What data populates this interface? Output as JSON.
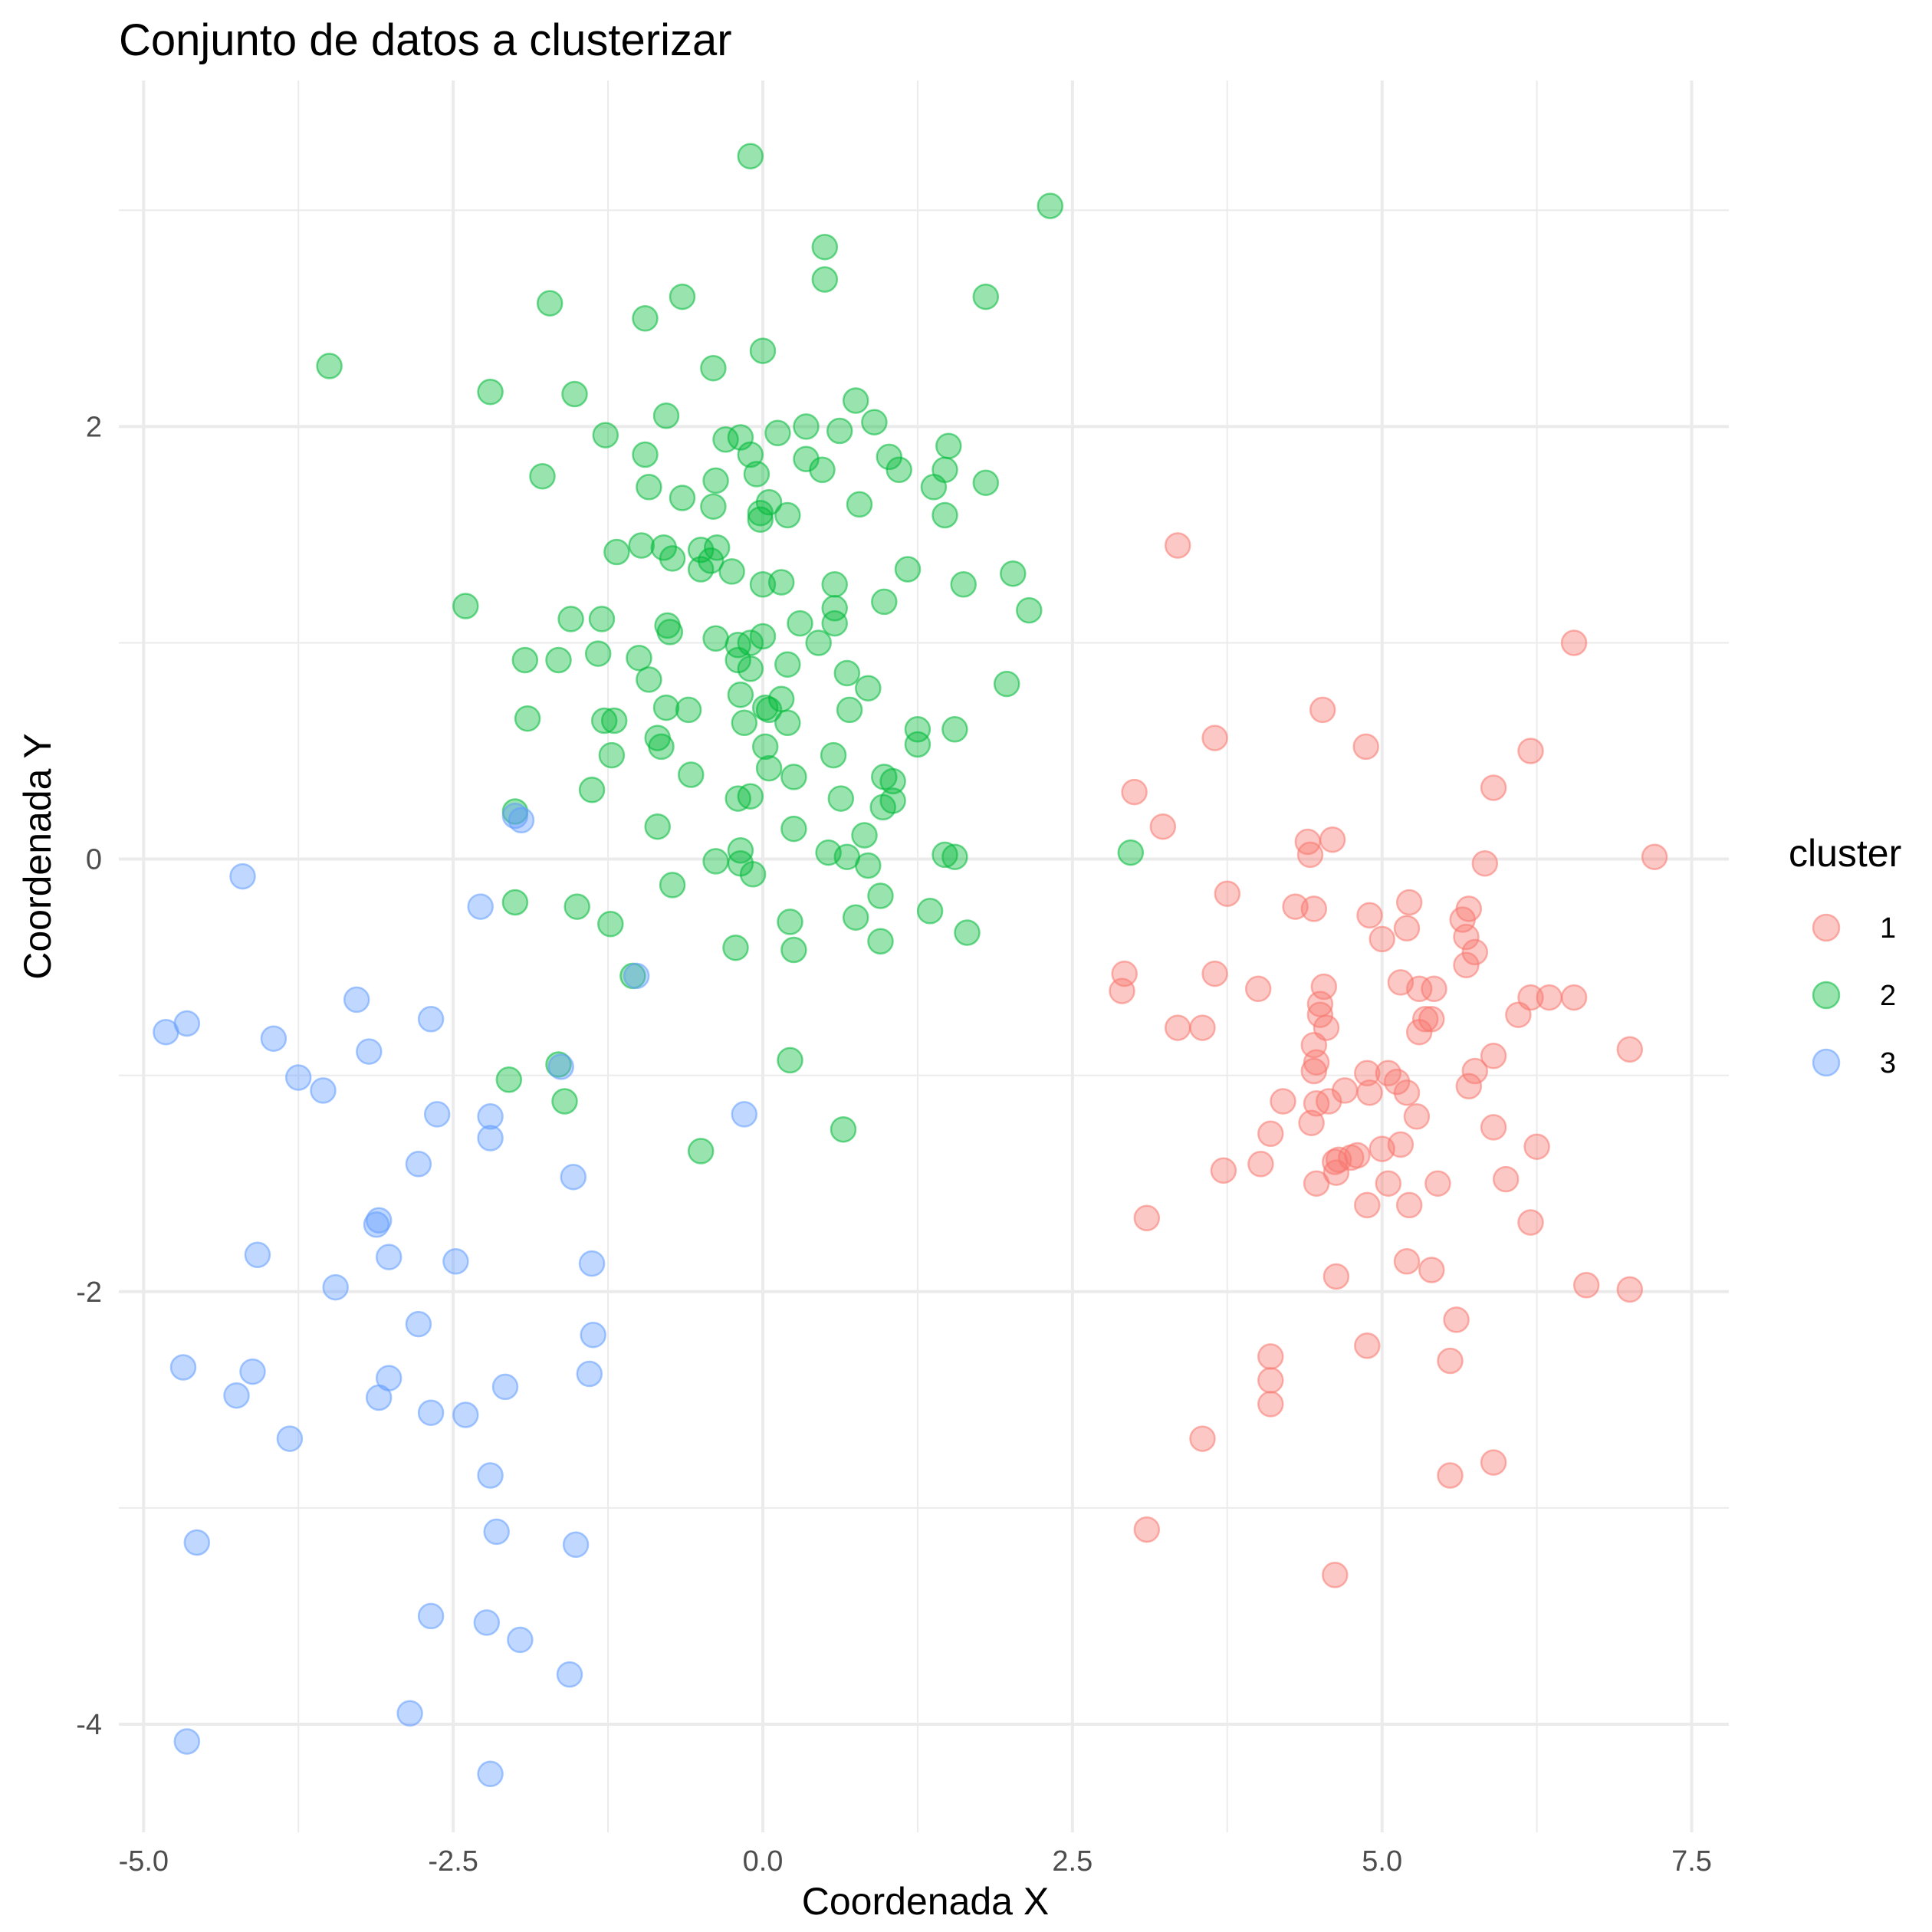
{
  "chart_data": {
    "type": "scatter",
    "title": "Conjunto de datos a clusterizar",
    "xlabel": "Coordenada X",
    "ylabel": "Coordenada Y",
    "xlim": [
      -5.2,
      7.8
    ],
    "ylim": [
      -4.5,
      3.6
    ],
    "xticks": [
      -5.0,
      -2.5,
      0.0,
      2.5,
      5.0,
      7.5
    ],
    "xtick_labels": [
      "-5.0",
      "-2.5",
      "0.0",
      "2.5",
      "5.0",
      "7.5"
    ],
    "yticks": [
      -4,
      -2,
      0,
      2
    ],
    "ytick_labels": [
      "-4",
      "-2",
      "0",
      "2"
    ],
    "grid": true,
    "legend": {
      "title": "cluster",
      "position": "right"
    },
    "series": [
      {
        "name": "1",
        "color": "#F8766D",
        "points": [
          [
            3.35,
            1.45
          ],
          [
            6.55,
            1.0
          ],
          [
            4.52,
            0.69
          ],
          [
            3.65,
            0.56
          ],
          [
            4.87,
            0.52
          ],
          [
            6.2,
            0.5
          ],
          [
            3.0,
            0.31
          ],
          [
            5.9,
            0.33
          ],
          [
            3.23,
            0.15
          ],
          [
            4.6,
            0.09
          ],
          [
            4.4,
            0.08
          ],
          [
            4.42,
            0.02
          ],
          [
            7.2,
            0.01
          ],
          [
            5.83,
            -0.02
          ],
          [
            3.75,
            -0.16
          ],
          [
            4.3,
            -0.22
          ],
          [
            5.22,
            -0.2
          ],
          [
            4.45,
            -0.23
          ],
          [
            5.7,
            -0.23
          ],
          [
            5.65,
            -0.28
          ],
          [
            4.9,
            -0.26
          ],
          [
            5.2,
            -0.32
          ],
          [
            5.0,
            -0.37
          ],
          [
            5.68,
            -0.36
          ],
          [
            5.75,
            -0.43
          ],
          [
            5.68,
            -0.49
          ],
          [
            2.92,
            -0.53
          ],
          [
            3.65,
            -0.53
          ],
          [
            2.9,
            -0.61
          ],
          [
            4.0,
            -0.6
          ],
          [
            4.53,
            -0.59
          ],
          [
            5.15,
            -0.57
          ],
          [
            5.3,
            -0.6
          ],
          [
            5.42,
            -0.6
          ],
          [
            6.35,
            -0.64
          ],
          [
            6.2,
            -0.64
          ],
          [
            6.55,
            -0.64
          ],
          [
            4.5,
            -0.67
          ],
          [
            4.5,
            -0.72
          ],
          [
            6.1,
            -0.72
          ],
          [
            5.35,
            -0.74
          ],
          [
            5.4,
            -0.74
          ],
          [
            4.55,
            -0.78
          ],
          [
            5.3,
            -0.8
          ],
          [
            3.35,
            -0.78
          ],
          [
            3.55,
            -0.78
          ],
          [
            4.45,
            -0.86
          ],
          [
            7.0,
            -0.88
          ],
          [
            5.9,
            -0.91
          ],
          [
            4.45,
            -0.98
          ],
          [
            4.47,
            -0.94
          ],
          [
            4.88,
            -0.99
          ],
          [
            5.05,
            -0.99
          ],
          [
            5.75,
            -0.98
          ],
          [
            5.12,
            -1.03
          ],
          [
            4.7,
            -1.07
          ],
          [
            4.9,
            -1.08
          ],
          [
            5.2,
            -1.08
          ],
          [
            5.7,
            -1.05
          ],
          [
            4.2,
            -1.12
          ],
          [
            4.47,
            -1.13
          ],
          [
            4.57,
            -1.12
          ],
          [
            5.28,
            -1.19
          ],
          [
            4.43,
            -1.22
          ],
          [
            4.1,
            -1.27
          ],
          [
            5.9,
            -1.24
          ],
          [
            5.15,
            -1.32
          ],
          [
            5.0,
            -1.34
          ],
          [
            6.25,
            -1.33
          ],
          [
            4.8,
            -1.37
          ],
          [
            4.75,
            -1.38
          ],
          [
            4.65,
            -1.39
          ],
          [
            4.62,
            -1.4
          ],
          [
            4.02,
            -1.41
          ],
          [
            3.72,
            -1.44
          ],
          [
            4.63,
            -1.45
          ],
          [
            4.47,
            -1.5
          ],
          [
            5.05,
            -1.5
          ],
          [
            5.45,
            -1.5
          ],
          [
            6.0,
            -1.48
          ],
          [
            4.88,
            -1.6
          ],
          [
            5.22,
            -1.6
          ],
          [
            3.1,
            -1.66
          ],
          [
            6.2,
            -1.68
          ],
          [
            5.2,
            -1.86
          ],
          [
            5.4,
            -1.9
          ],
          [
            4.63,
            -1.93
          ],
          [
            6.65,
            -1.97
          ],
          [
            7.0,
            -1.99
          ],
          [
            5.6,
            -2.13
          ],
          [
            4.88,
            -2.25
          ],
          [
            4.1,
            -2.3
          ],
          [
            5.55,
            -2.32
          ],
          [
            4.1,
            -2.41
          ],
          [
            4.1,
            -2.52
          ],
          [
            3.55,
            -2.68
          ],
          [
            5.9,
            -2.79
          ],
          [
            5.55,
            -2.85
          ],
          [
            3.1,
            -3.1
          ],
          [
            4.62,
            -3.31
          ]
        ]
      },
      {
        "name": "2",
        "color": "#00BA38",
        "points": [
          [
            -0.1,
            3.25
          ],
          [
            2.32,
            3.02
          ],
          [
            0.5,
            2.83
          ],
          [
            0.5,
            2.68
          ],
          [
            -0.65,
            2.6
          ],
          [
            1.8,
            2.6
          ],
          [
            -1.72,
            2.57
          ],
          [
            -0.95,
            2.5
          ],
          [
            0.0,
            2.35
          ],
          [
            -3.5,
            2.28
          ],
          [
            -0.4,
            2.27
          ],
          [
            -2.2,
            2.16
          ],
          [
            -1.52,
            2.15
          ],
          [
            0.75,
            2.12
          ],
          [
            -0.78,
            2.05
          ],
          [
            0.9,
            2.02
          ],
          [
            0.35,
            2.0
          ],
          [
            0.62,
            1.98
          ],
          [
            0.12,
            1.97
          ],
          [
            -1.27,
            1.96
          ],
          [
            -0.3,
            1.94
          ],
          [
            -0.18,
            1.95
          ],
          [
            1.5,
            1.91
          ],
          [
            -0.95,
            1.87
          ],
          [
            -0.1,
            1.87
          ],
          [
            1.02,
            1.86
          ],
          [
            0.35,
            1.85
          ],
          [
            0.48,
            1.8
          ],
          [
            1.1,
            1.8
          ],
          [
            1.47,
            1.8
          ],
          [
            -0.05,
            1.78
          ],
          [
            -1.78,
            1.77
          ],
          [
            -0.38,
            1.75
          ],
          [
            1.8,
            1.74
          ],
          [
            -0.92,
            1.72
          ],
          [
            1.38,
            1.72
          ],
          [
            -0.65,
            1.67
          ],
          [
            0.05,
            1.65
          ],
          [
            -0.4,
            1.63
          ],
          [
            0.78,
            1.64
          ],
          [
            -0.02,
            1.6
          ],
          [
            0.2,
            1.59
          ],
          [
            -0.02,
            1.57
          ],
          [
            1.47,
            1.59
          ],
          [
            -0.98,
            1.45
          ],
          [
            -0.8,
            1.44
          ],
          [
            -0.5,
            1.43
          ],
          [
            -0.37,
            1.44
          ],
          [
            -1.18,
            1.42
          ],
          [
            -0.73,
            1.39
          ],
          [
            -0.42,
            1.38
          ],
          [
            -0.5,
            1.34
          ],
          [
            -0.25,
            1.33
          ],
          [
            1.17,
            1.34
          ],
          [
            0.58,
            1.27
          ],
          [
            0.0,
            1.27
          ],
          [
            0.15,
            1.28
          ],
          [
            1.62,
            1.27
          ],
          [
            2.02,
            1.32
          ],
          [
            -2.4,
            1.17
          ],
          [
            0.98,
            1.19
          ],
          [
            0.58,
            1.16
          ],
          [
            2.15,
            1.15
          ],
          [
            -1.55,
            1.11
          ],
          [
            -1.3,
            1.11
          ],
          [
            0.3,
            1.09
          ],
          [
            0.58,
            1.09
          ],
          [
            -0.77,
            1.08
          ],
          [
            -0.75,
            1.05
          ],
          [
            0.0,
            1.03
          ],
          [
            0.45,
            1.0
          ],
          [
            -0.38,
            1.02
          ],
          [
            -0.2,
            0.99
          ],
          [
            -0.1,
            1.0
          ],
          [
            -1.92,
            0.92
          ],
          [
            -1.65,
            0.92
          ],
          [
            -1.33,
            0.95
          ],
          [
            -1.0,
            0.93
          ],
          [
            -0.2,
            0.92
          ],
          [
            -0.1,
            0.88
          ],
          [
            0.2,
            0.9
          ],
          [
            -0.92,
            0.83
          ],
          [
            0.68,
            0.86
          ],
          [
            1.97,
            0.81
          ],
          [
            0.85,
            0.79
          ],
          [
            -0.18,
            0.76
          ],
          [
            0.15,
            0.74
          ],
          [
            -0.78,
            0.7
          ],
          [
            -0.6,
            0.69
          ],
          [
            0.02,
            0.7
          ],
          [
            0.05,
            0.69
          ],
          [
            0.7,
            0.69
          ],
          [
            -1.9,
            0.65
          ],
          [
            -1.28,
            0.64
          ],
          [
            -1.2,
            0.64
          ],
          [
            -0.15,
            0.63
          ],
          [
            0.2,
            0.63
          ],
          [
            1.25,
            0.6
          ],
          [
            1.55,
            0.6
          ],
          [
            -0.85,
            0.56
          ],
          [
            0.02,
            0.52
          ],
          [
            -0.82,
            0.52
          ],
          [
            1.25,
            0.53
          ],
          [
            -1.22,
            0.48
          ],
          [
            0.57,
            0.48
          ],
          [
            0.05,
            0.42
          ],
          [
            -0.58,
            0.39
          ],
          [
            0.25,
            0.38
          ],
          [
            0.98,
            0.38
          ],
          [
            1.05,
            0.36
          ],
          [
            -1.38,
            0.32
          ],
          [
            -0.2,
            0.28
          ],
          [
            -0.1,
            0.29
          ],
          [
            0.63,
            0.28
          ],
          [
            1.05,
            0.27
          ],
          [
            0.97,
            0.24
          ],
          [
            -2.0,
            0.22
          ],
          [
            -0.85,
            0.15
          ],
          [
            0.25,
            0.14
          ],
          [
            0.82,
            0.11
          ],
          [
            2.97,
            0.03
          ],
          [
            -0.18,
            0.04
          ],
          [
            0.53,
            0.03
          ],
          [
            0.68,
            0.01
          ],
          [
            1.47,
            0.02
          ],
          [
            1.55,
            0.01
          ],
          [
            -0.38,
            -0.01
          ],
          [
            -0.18,
            -0.02
          ],
          [
            0.85,
            -0.03
          ],
          [
            -0.08,
            -0.07
          ],
          [
            -0.73,
            -0.12
          ],
          [
            0.95,
            -0.17
          ],
          [
            -2.0,
            -0.2
          ],
          [
            -1.5,
            -0.22
          ],
          [
            1.35,
            -0.24
          ],
          [
            0.75,
            -0.27
          ],
          [
            -1.23,
            -0.3
          ],
          [
            0.22,
            -0.29
          ],
          [
            1.65,
            -0.34
          ],
          [
            0.95,
            -0.38
          ],
          [
            -0.22,
            -0.41
          ],
          [
            0.25,
            -0.42
          ],
          [
            -1.05,
            -0.54
          ],
          [
            0.22,
            -0.93
          ],
          [
            -1.65,
            -0.95
          ],
          [
            -2.05,
            -1.02
          ],
          [
            -1.6,
            -1.12
          ],
          [
            0.65,
            -1.25
          ],
          [
            -0.5,
            -1.35
          ]
        ]
      },
      {
        "name": "3",
        "color": "#619CFF",
        "points": [
          [
            -2.0,
            0.2
          ],
          [
            -1.95,
            0.18
          ],
          [
            -4.2,
            -0.08
          ],
          [
            -2.28,
            -0.22
          ],
          [
            -1.02,
            -0.54
          ],
          [
            -3.28,
            -0.65
          ],
          [
            -2.68,
            -0.74
          ],
          [
            -4.65,
            -0.76
          ],
          [
            -4.82,
            -0.8
          ],
          [
            -3.95,
            -0.83
          ],
          [
            -3.18,
            -0.89
          ],
          [
            -1.63,
            -0.96
          ],
          [
            -3.75,
            -1.01
          ],
          [
            -3.55,
            -1.07
          ],
          [
            -2.63,
            -1.18
          ],
          [
            -0.15,
            -1.18
          ],
          [
            -2.2,
            -1.19
          ],
          [
            -2.2,
            -1.29
          ],
          [
            -2.78,
            -1.41
          ],
          [
            -1.53,
            -1.47
          ],
          [
            -3.1,
            -1.67
          ],
          [
            -3.12,
            -1.69
          ],
          [
            -4.08,
            -1.83
          ],
          [
            -3.02,
            -1.84
          ],
          [
            -2.48,
            -1.86
          ],
          [
            -1.38,
            -1.87
          ],
          [
            -3.45,
            -1.98
          ],
          [
            -2.78,
            -2.15
          ],
          [
            -1.37,
            -2.2
          ],
          [
            -4.68,
            -2.35
          ],
          [
            -4.12,
            -2.37
          ],
          [
            -1.4,
            -2.38
          ],
          [
            -3.02,
            -2.4
          ],
          [
            -2.08,
            -2.44
          ],
          [
            -4.25,
            -2.48
          ],
          [
            -3.1,
            -2.49
          ],
          [
            -2.68,
            -2.56
          ],
          [
            -2.4,
            -2.57
          ],
          [
            -3.82,
            -2.68
          ],
          [
            -2.2,
            -2.85
          ],
          [
            -2.15,
            -3.11
          ],
          [
            -4.57,
            -3.16
          ],
          [
            -1.51,
            -3.17
          ],
          [
            -2.68,
            -3.5
          ],
          [
            -2.23,
            -3.53
          ],
          [
            -1.96,
            -3.61
          ],
          [
            -1.56,
            -3.77
          ],
          [
            -2.85,
            -3.95
          ],
          [
            -4.65,
            -4.08
          ],
          [
            -2.2,
            -4.23
          ]
        ]
      }
    ]
  }
}
